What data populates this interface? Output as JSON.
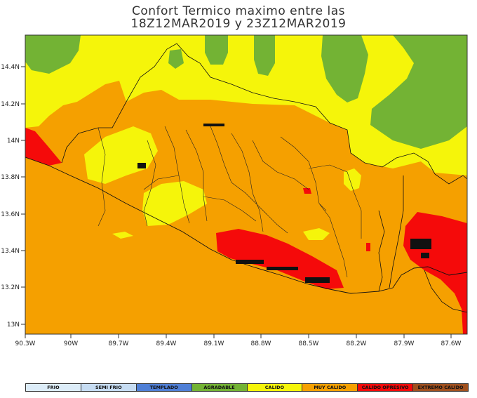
{
  "title": {
    "line1": "Confort Termico maximo entre las",
    "line2": "18Z12MAR2019 y 23Z12MAR2019"
  },
  "map": {
    "lat_ticks": [
      "14.4N",
      "14.2N",
      "14N",
      "13.8N",
      "13.6N",
      "13.4N",
      "13.2N",
      "13N"
    ],
    "lon_ticks": [
      "90.3W",
      "90W",
      "89.7W",
      "89.4W",
      "89.1W",
      "88.8W",
      "88.5W",
      "88.2W",
      "87.9W",
      "87.6W"
    ]
  },
  "legend": [
    {
      "label": "FRIO",
      "color": "#dcecf8"
    },
    {
      "label": "SEMI FRIO",
      "color": "#c6dcf2"
    },
    {
      "label": "TEMPLADO",
      "color": "#4f7fd6"
    },
    {
      "label": "AGRADABLE",
      "color": "#73b334"
    },
    {
      "label": "CALIDO",
      "color": "#f5f50a"
    },
    {
      "label": "MUY CALIDO",
      "color": "#f5a000"
    },
    {
      "label": "CALIDO OPRESIVO",
      "color": "#f50a0a"
    },
    {
      "label": "EXTREMO CALIDO",
      "color": "#a0501e"
    }
  ]
}
